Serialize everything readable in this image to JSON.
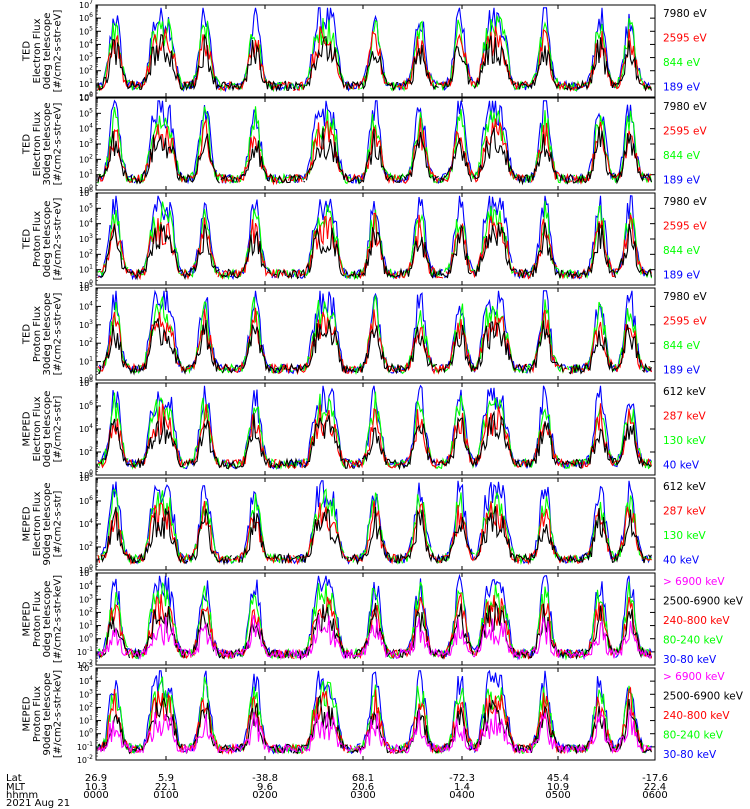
{
  "colors": {
    "blue": "#0000ff",
    "red": "#ff0000",
    "green": "#00ff00",
    "black": "#000000",
    "magenta": "#ff00ff"
  },
  "footer": {
    "labels": [
      "Lat",
      "MLT",
      "hhmm",
      "2021 Aug 21"
    ],
    "lat": [
      "26.9",
      "5.9",
      "-38.8",
      "68.1",
      "-72.3",
      "45.4",
      "-17.6"
    ],
    "mlt": [
      "10.3",
      "22.1",
      "9.6",
      "20.6",
      "1.4",
      "10.9",
      "22.4"
    ],
    "hhmm": [
      "0000",
      "0100",
      "0200",
      "0300",
      "0400",
      "0500",
      "0600"
    ]
  },
  "chart_data": [
    {
      "type": "line",
      "ylabel": [
        "TED",
        "Electron Flux",
        "0deg telescope",
        "[#/cm2-s-str-eV]"
      ],
      "ylim": [
        1,
        10000000
      ],
      "ytick_exponents": [
        0,
        1,
        2,
        3,
        4,
        5,
        6,
        7
      ],
      "yscale": "log",
      "series": [
        {
          "name": "7980 eV",
          "color": "black"
        },
        {
          "name": "2595 eV",
          "color": "red"
        },
        {
          "name": "844 eV",
          "color": "green"
        },
        {
          "name": "189 eV",
          "color": "blue"
        }
      ]
    },
    {
      "type": "line",
      "ylabel": [
        "TED",
        "Electron Flux",
        "30deg telescope",
        "[#/cm2-s-str-eV]"
      ],
      "ylim": [
        1,
        1000000
      ],
      "ytick_exponents": [
        0,
        1,
        2,
        3,
        4,
        5,
        6
      ],
      "yscale": "log",
      "series": [
        {
          "name": "7980 eV",
          "color": "black"
        },
        {
          "name": "2595 eV",
          "color": "red"
        },
        {
          "name": "844 eV",
          "color": "green"
        },
        {
          "name": "189 eV",
          "color": "blue"
        }
      ]
    },
    {
      "type": "line",
      "ylabel": [
        "TED",
        "Proton Flux",
        "0deg telescope",
        "[#/cm2-s-str-eV]"
      ],
      "ylim": [
        1,
        1000000
      ],
      "ytick_exponents": [
        0,
        1,
        2,
        3,
        4,
        5,
        6
      ],
      "yscale": "log",
      "series": [
        {
          "name": "7980 eV",
          "color": "black"
        },
        {
          "name": "2595 eV",
          "color": "red"
        },
        {
          "name": "844 eV",
          "color": "green"
        },
        {
          "name": "189 eV",
          "color": "blue"
        }
      ]
    },
    {
      "type": "line",
      "ylabel": [
        "TED",
        "Proton Flux",
        "30deg telescope",
        "[#/cm2-s-str-eV]"
      ],
      "ylim": [
        1,
        100000
      ],
      "ytick_exponents": [
        0,
        1,
        2,
        3,
        4,
        5
      ],
      "yscale": "log",
      "series": [
        {
          "name": "7980 eV",
          "color": "black"
        },
        {
          "name": "2595 eV",
          "color": "red"
        },
        {
          "name": "844 eV",
          "color": "green"
        },
        {
          "name": "189 eV",
          "color": "blue"
        }
      ]
    },
    {
      "type": "line",
      "ylabel": [
        "MEPED",
        "Electron Flux",
        "0deg telescope",
        "[#/cm2-s-str]"
      ],
      "ylim": [
        1,
        100000000
      ],
      "ytick_exponents": [
        0,
        2,
        4,
        6,
        8
      ],
      "yscale": "log",
      "series": [
        {
          "name": "612 keV",
          "color": "black"
        },
        {
          "name": "287 keV",
          "color": "red"
        },
        {
          "name": "130 keV",
          "color": "green"
        },
        {
          "name": "40 keV",
          "color": "blue"
        }
      ]
    },
    {
      "type": "line",
      "ylabel": [
        "MEPED",
        "Electron Flux",
        "90deg telescope",
        "[#/cm2-s-str]"
      ],
      "ylim": [
        1,
        100000000
      ],
      "ytick_exponents": [
        0,
        2,
        4,
        6,
        8
      ],
      "yscale": "log",
      "series": [
        {
          "name": "612 keV",
          "color": "black"
        },
        {
          "name": "287 keV",
          "color": "red"
        },
        {
          "name": "130 keV",
          "color": "green"
        },
        {
          "name": "40 keV",
          "color": "blue"
        }
      ]
    },
    {
      "type": "line",
      "ylabel": [
        "MEPED",
        "Proton Flux",
        "0deg telescope",
        "[#/cm2-s-str-keV]"
      ],
      "ylim": [
        0.01,
        100000
      ],
      "ytick_exponents": [
        -2,
        -1,
        0,
        1,
        2,
        3,
        4,
        5
      ],
      "yscale": "log",
      "series": [
        {
          "name": "> 6900 keV",
          "color": "magenta"
        },
        {
          "name": "2500-6900 keV",
          "color": "black"
        },
        {
          "name": "240-800 keV",
          "color": "red"
        },
        {
          "name": "80-240 keV",
          "color": "green"
        },
        {
          "name": "30-80 keV",
          "color": "blue"
        }
      ]
    },
    {
      "type": "line",
      "ylabel": [
        "MEPED",
        "Proton Flux",
        "90deg telescope",
        "[#/cm2-s-str-keV]"
      ],
      "ylim": [
        0.01,
        100000
      ],
      "ytick_exponents": [
        -2,
        -1,
        0,
        1,
        2,
        3,
        4,
        5
      ],
      "yscale": "log",
      "series": [
        {
          "name": "> 6900 keV",
          "color": "magenta"
        },
        {
          "name": "2500-6900 keV",
          "color": "black"
        },
        {
          "name": "240-800 keV",
          "color": "red"
        },
        {
          "name": "80-240 keV",
          "color": "green"
        },
        {
          "name": "30-80 keV",
          "color": "blue"
        }
      ]
    }
  ]
}
